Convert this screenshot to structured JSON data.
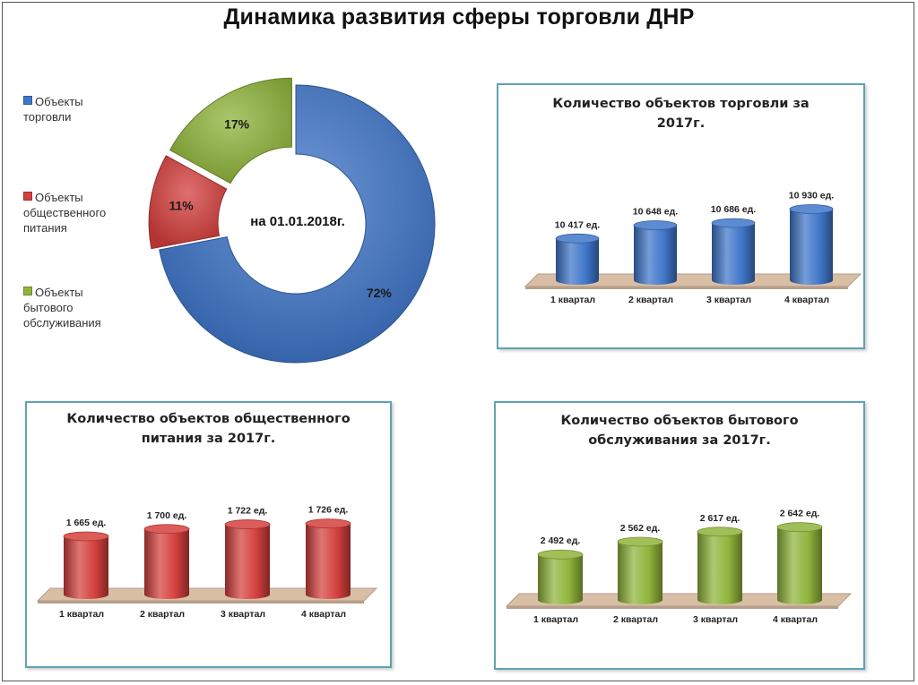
{
  "title": "Динамика развития сферы торговли ДНР",
  "chart_data": [
    {
      "type": "pie",
      "subtype": "donut",
      "center_label": "на 01.01.2018г.",
      "legend_position": "left",
      "slices": [
        {
          "label": "Объекты торговли",
          "legend_lines": [
            "Объекты",
            "торговли"
          ],
          "value": 72,
          "value_label": "72%",
          "color": "#3f76c9"
        },
        {
          "label": "Объекты общественного питания",
          "legend_lines": [
            "Объекты",
            "общественного",
            "питания"
          ],
          "value": 11,
          "value_label": "11%",
          "color": "#d4403d"
        },
        {
          "label": "Объекты бытового обслуживания",
          "legend_lines": [
            "Объекты",
            "бытового",
            "обслуживания"
          ],
          "value": 17,
          "value_label": "17%",
          "color": "#8fb43b"
        }
      ]
    },
    {
      "type": "bar",
      "style": "3d-cylinder",
      "title_lines": [
        "Количество объектов торговли за",
        "2017г."
      ],
      "categories": [
        "1 квартал",
        "2 квартал",
        "3 квартал",
        "4 квартал"
      ],
      "values": [
        10417,
        10648,
        10686,
        10930
      ],
      "value_labels": [
        "10 417 ед.",
        "10 648 ед.",
        "10 686 ед.",
        "10 930 ед."
      ],
      "ylim": [
        10000,
        11000
      ],
      "color": "#3f76c9",
      "grid": false
    },
    {
      "type": "bar",
      "style": "3d-cylinder",
      "title_lines": [
        "Количество объектов общественного",
        "питания за 2017г."
      ],
      "categories": [
        "1 квартал",
        "2 квартал",
        "3 квартал",
        "4 квартал"
      ],
      "values": [
        1665,
        1700,
        1722,
        1726
      ],
      "value_labels": [
        "1 665 ед.",
        "1 700 ед.",
        "1 722 ед.",
        "1 726 ед."
      ],
      "ylim": [
        1550,
        1750
      ],
      "color": "#d4403d",
      "grid": false
    },
    {
      "type": "bar",
      "style": "3d-cylinder",
      "title_lines": [
        "Количество объектов бытового",
        "обслуживания за 2017г."
      ],
      "categories": [
        "1 квартал",
        "2 квартал",
        "3 квартал",
        "4 квартал"
      ],
      "values": [
        2492,
        2562,
        2617,
        2642
      ],
      "value_labels": [
        "2 492 ед.",
        "2 562 ед.",
        "2 617 ед.",
        "2 642 ед."
      ],
      "ylim": [
        2400,
        2660
      ],
      "color": "#8fb43b",
      "grid": false
    }
  ]
}
